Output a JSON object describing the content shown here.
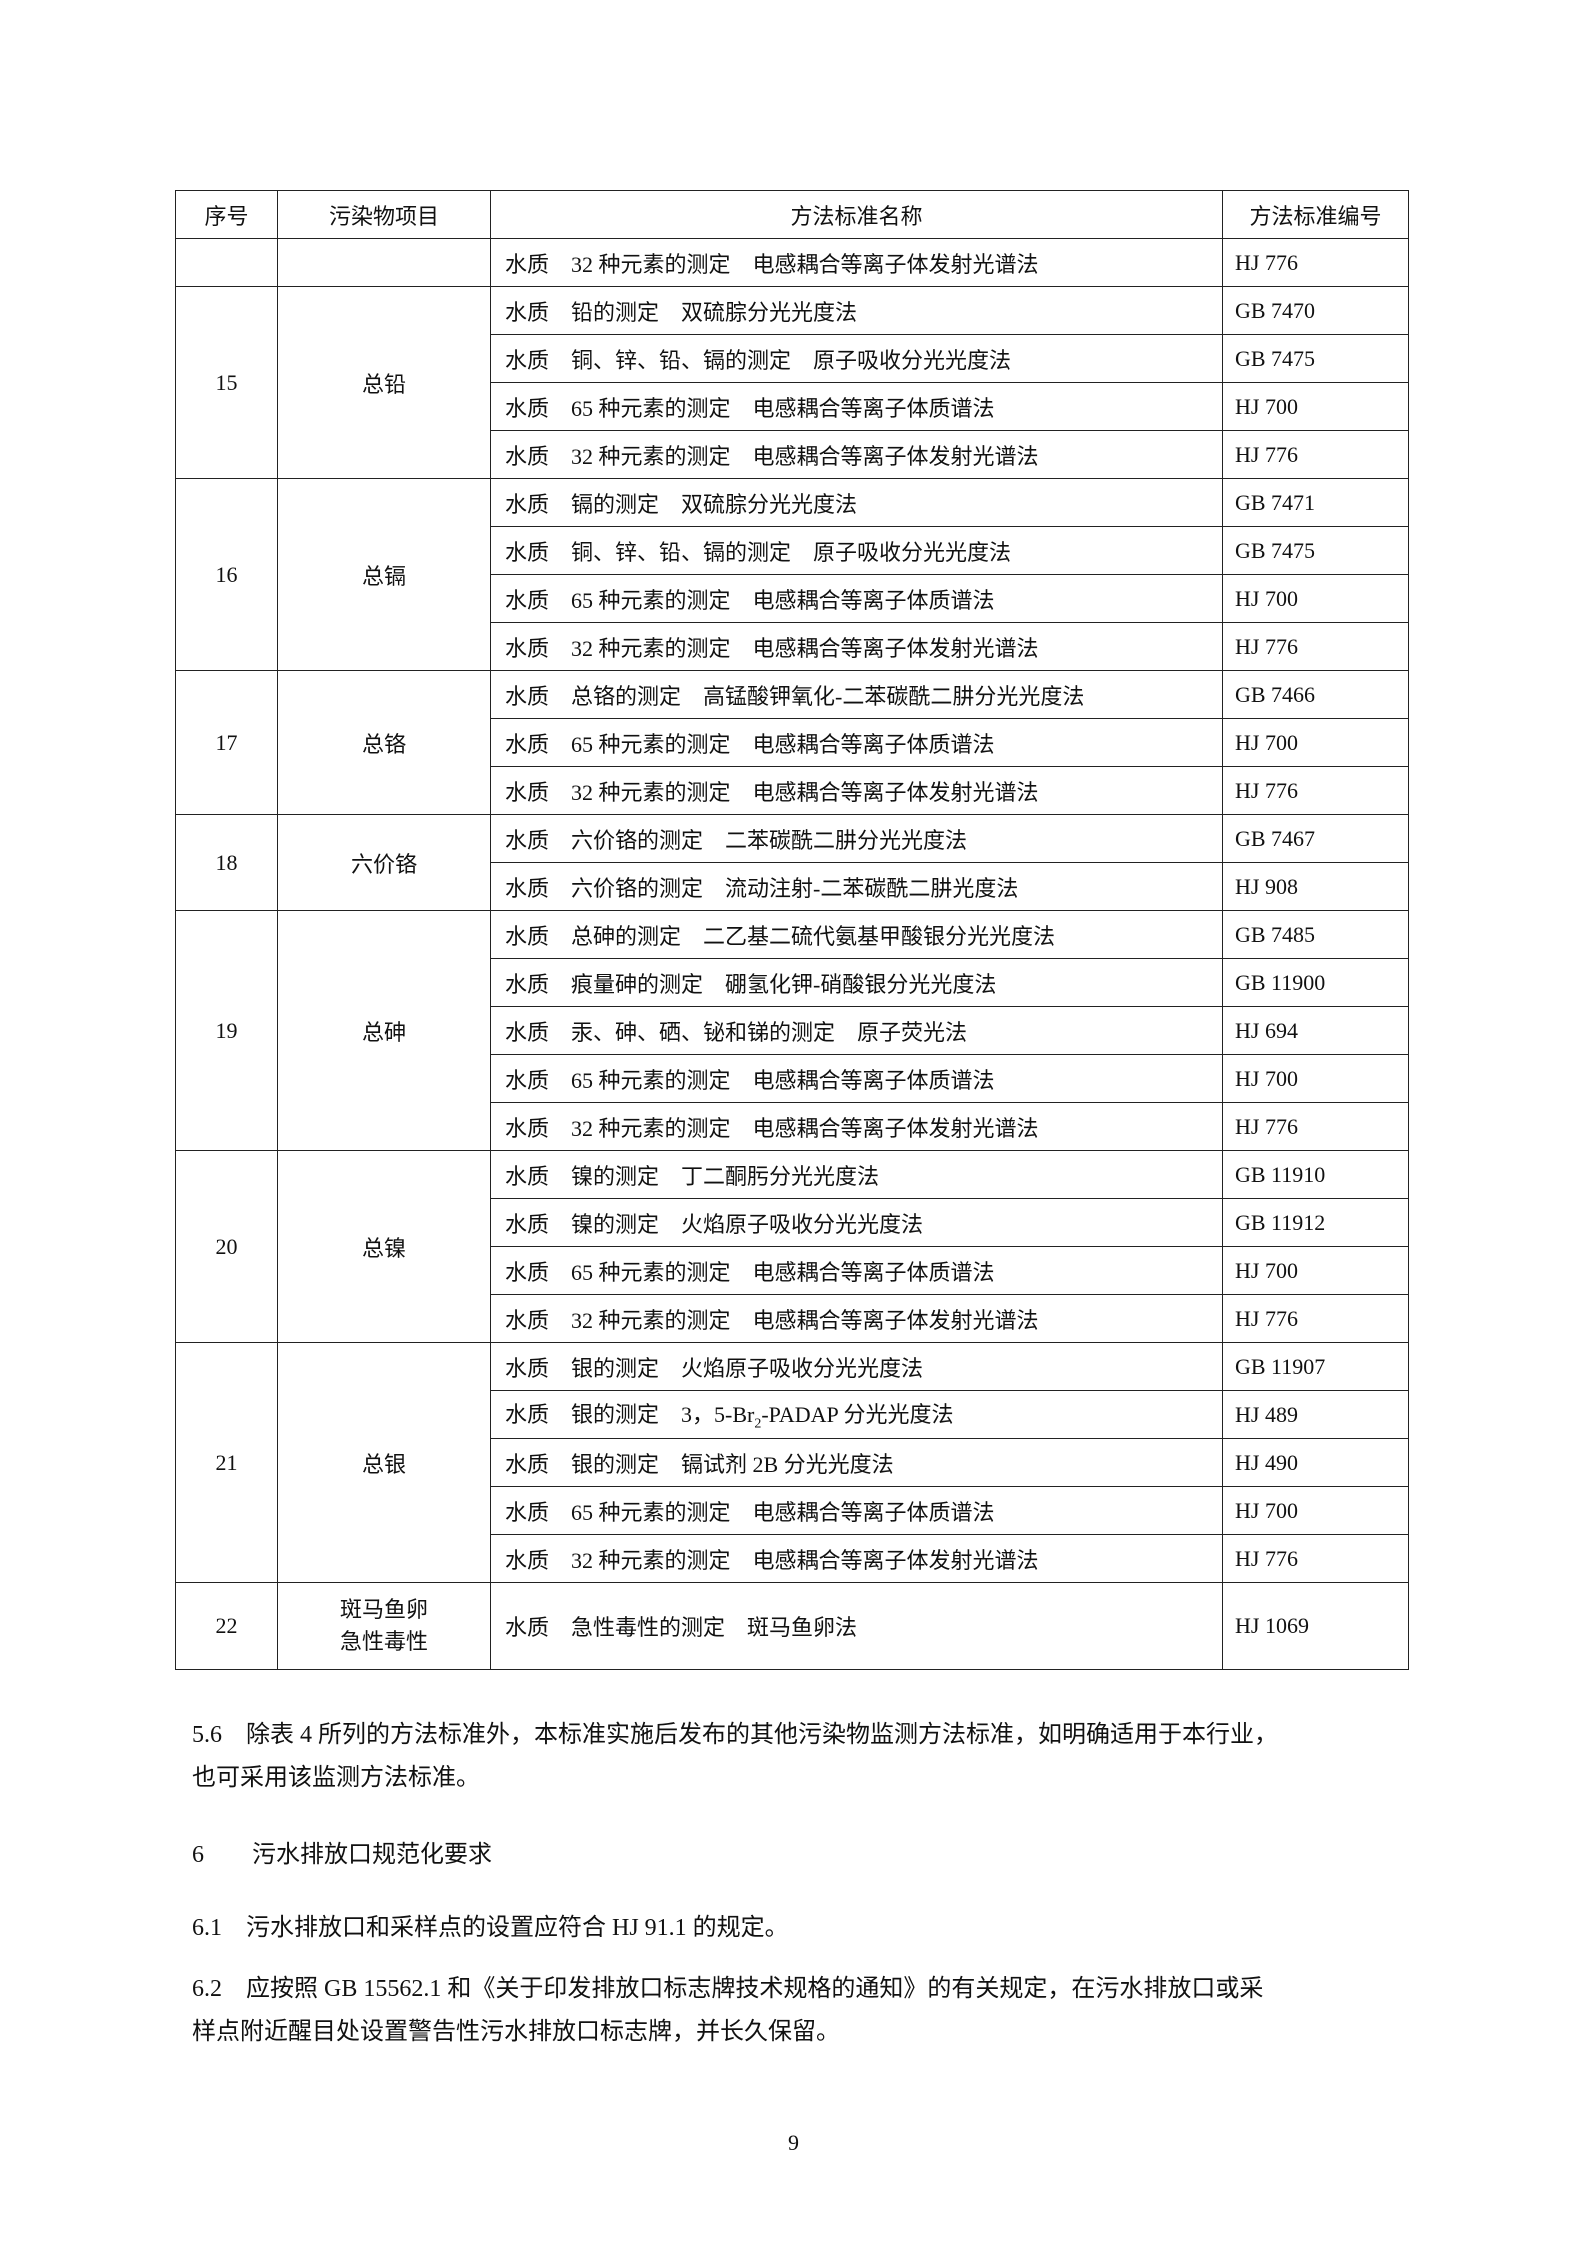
{
  "table": {
    "headers": [
      "序号",
      "污染物项目",
      "方法标准名称",
      "方法标准编号"
    ],
    "groups": [
      {
        "no": "",
        "item": "",
        "rows": [
          {
            "method": "水质　32 种元素的测定　电感耦合等离子体发射光谱法",
            "code": "HJ 776"
          }
        ]
      },
      {
        "no": "15",
        "item": "总铅",
        "rows": [
          {
            "method": "水质　铅的测定　双硫腙分光光度法",
            "code": "GB 7470"
          },
          {
            "method": "水质　铜、锌、铅、镉的测定　原子吸收分光光度法",
            "code": "GB 7475"
          },
          {
            "method": "水质　65 种元素的测定　电感耦合等离子体质谱法",
            "code": "HJ 700"
          },
          {
            "method": "水质　32 种元素的测定　电感耦合等离子体发射光谱法",
            "code": "HJ 776"
          }
        ]
      },
      {
        "no": "16",
        "item": "总镉",
        "rows": [
          {
            "method": "水质　镉的测定　双硫腙分光光度法",
            "code": "GB 7471"
          },
          {
            "method": "水质　铜、锌、铅、镉的测定　原子吸收分光光度法",
            "code": "GB 7475"
          },
          {
            "method": "水质　65 种元素的测定　电感耦合等离子体质谱法",
            "code": "HJ 700"
          },
          {
            "method": "水质　32 种元素的测定　电感耦合等离子体发射光谱法",
            "code": "HJ 776"
          }
        ]
      },
      {
        "no": "17",
        "item": "总铬",
        "rows": [
          {
            "method": "水质　总铬的测定　高锰酸钾氧化-二苯碳酰二肼分光光度法",
            "code": "GB 7466"
          },
          {
            "method": "水质　65 种元素的测定　电感耦合等离子体质谱法",
            "code": "HJ 700"
          },
          {
            "method": "水质　32 种元素的测定　电感耦合等离子体发射光谱法",
            "code": "HJ 776"
          }
        ]
      },
      {
        "no": "18",
        "item": "六价铬",
        "rows": [
          {
            "method": "水质　六价铬的测定　二苯碳酰二肼分光光度法",
            "code": "GB 7467"
          },
          {
            "method": "水质　六价铬的测定　流动注射-二苯碳酰二肼光度法",
            "code": "HJ 908"
          }
        ]
      },
      {
        "no": "19",
        "item": "总砷",
        "rows": [
          {
            "method": "水质　总砷的测定　二乙基二硫代氨基甲酸银分光光度法",
            "code": "GB 7485"
          },
          {
            "method": "水质　痕量砷的测定　硼氢化钾-硝酸银分光光度法",
            "code": "GB 11900"
          },
          {
            "method": "水质　汞、砷、硒、铋和锑的测定　原子荧光法",
            "code": "HJ 694"
          },
          {
            "method": "水质　65 种元素的测定　电感耦合等离子体质谱法",
            "code": "HJ 700"
          },
          {
            "method": "水质　32 种元素的测定　电感耦合等离子体发射光谱法",
            "code": "HJ 776"
          }
        ]
      },
      {
        "no": "20",
        "item": "总镍",
        "rows": [
          {
            "method": "水质　镍的测定　丁二酮肟分光光度法",
            "code": "GB 11910"
          },
          {
            "method": "水质　镍的测定　火焰原子吸收分光光度法",
            "code": "GB 11912"
          },
          {
            "method": "水质　65 种元素的测定　电感耦合等离子体质谱法",
            "code": "HJ 700"
          },
          {
            "method": "水质　32 种元素的测定　电感耦合等离子体发射光谱法",
            "code": "HJ 776"
          }
        ]
      },
      {
        "no": "21",
        "item": "总银",
        "rows": [
          {
            "method": "水质　银的测定　火焰原子吸收分光光度法",
            "code": "GB 11907"
          },
          {
            "method_pre": "水质　银的测定　3，5-Br",
            "method_sub": "2",
            "method_post": "-PADAP 分光光度法",
            "code": "HJ 489"
          },
          {
            "method": "水质　银的测定　镉试剂 2B 分光光度法",
            "code": "HJ 490"
          },
          {
            "method": "水质　65 种元素的测定　电感耦合等离子体质谱法",
            "code": "HJ 700"
          },
          {
            "method": "水质　32 种元素的测定　电感耦合等离子体发射光谱法",
            "code": "HJ 776"
          }
        ]
      },
      {
        "no": "22",
        "item_lines": [
          "斑马鱼卵",
          "急性毒性"
        ],
        "rows": [
          {
            "method": "水质　急性毒性的测定　斑马鱼卵法",
            "code": "HJ 1069"
          }
        ]
      }
    ]
  },
  "paragraphs": {
    "p56_line1": "5.6　除表 4 所列的方法标准外，本标准实施后发布的其他污染物监测方法标准，如明确适用于本行业，",
    "p56_line2": "也可采用该监测方法标准。",
    "h6": "6　　污水排放口规范化要求",
    "p61": "6.1　污水排放口和采样点的设置应符合 HJ 91.1 的规定。",
    "p62_line1": "6.2　应按照 GB 15562.1 和《关于印发排放口标志牌技术规格的通知》的有关规定，在污水排放口或采",
    "p62_line2": "样点附近醒目处设置警告性污水排放口标志牌，并长久保留。"
  },
  "page_number": "9"
}
